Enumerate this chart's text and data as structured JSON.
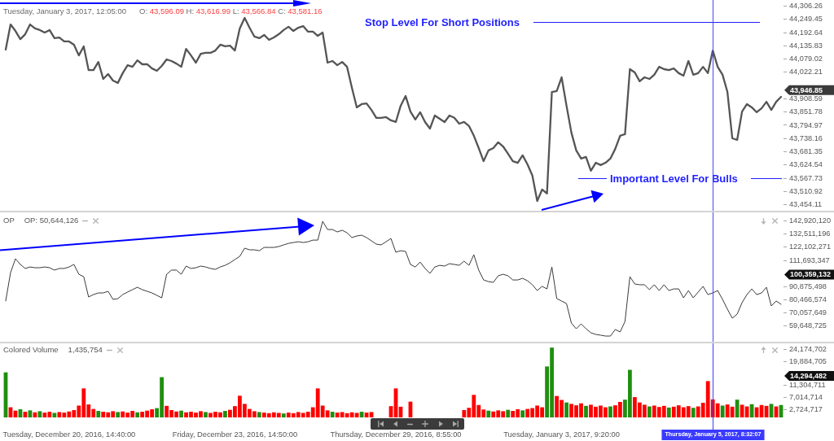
{
  "chart_data": [
    {
      "type": "line",
      "tick_labels": "y",
      "marker": "none",
      "color": "#555555",
      "categories": [
        null,
        null,
        null,
        null,
        null,
        null,
        null,
        null,
        null,
        null,
        null,
        null,
        null,
        "Tuesday, December 20, 2016, 14:40:00",
        null,
        null,
        null,
        null,
        null,
        null,
        null,
        null,
        null,
        null,
        null,
        null,
        null,
        null,
        null,
        null,
        null,
        null,
        null,
        null,
        null,
        null,
        null,
        null,
        null,
        null,
        null,
        null,
        null,
        null,
        null,
        null,
        null,
        "Friday, December 23, 2016, 14:50:00",
        null,
        null,
        null,
        null,
        null,
        null,
        null,
        null,
        null,
        null,
        null,
        null,
        null,
        null,
        null,
        null,
        null,
        null,
        null,
        null,
        null,
        null,
        null,
        null,
        null,
        null,
        null,
        null,
        null,
        null,
        null,
        null,
        "Thursday, December 29, 2016, 8:55:00",
        null,
        null,
        null,
        null,
        null,
        null,
        null,
        null,
        null,
        null,
        null,
        null,
        null,
        null,
        null,
        null,
        null,
        null,
        null,
        null,
        null,
        null,
        null,
        null,
        null,
        null,
        null,
        null,
        null,
        null,
        null,
        null,
        null,
        "Tuesday, January 3, 2017, 9:20:00",
        null,
        null,
        null,
        null,
        null,
        null,
        null,
        null,
        null,
        null,
        null,
        null,
        null,
        null,
        null,
        null,
        null,
        null,
        null,
        null,
        null,
        null,
        null,
        null,
        null,
        null,
        null,
        null,
        null,
        null,
        "Thursday, January 5, 2017, 8:32:07",
        null,
        null,
        null,
        null,
        null,
        null,
        null,
        null,
        null,
        null,
        null,
        null,
        null,
        null
      ],
      "values": [
        44120,
        44228,
        44200,
        44165,
        44186,
        44228,
        44211,
        44204,
        44193,
        44204,
        44169,
        44172,
        44155,
        44155,
        44141,
        44095,
        44134,
        44032,
        44032,
        44067,
        43994,
        44015,
        43987,
        43977,
        44019,
        44053,
        44046,
        44074,
        44057,
        44057,
        44039,
        44029,
        44050,
        44078,
        44071,
        44060,
        44046,
        44123,
        44095,
        44064,
        44102,
        44106,
        44106,
        44116,
        44141,
        44134,
        44137,
        44116,
        44211,
        44256,
        44214,
        44176,
        44169,
        44183,
        44162,
        44172,
        44186,
        44204,
        44218,
        44200,
        44214,
        44221,
        44197,
        44197,
        44179,
        44193,
        44064,
        44071,
        44053,
        44067,
        44046,
        43956,
        43872,
        43886,
        43889,
        43861,
        43827,
        43827,
        43830,
        43816,
        43809,
        43879,
        43921,
        43854,
        43820,
        43851,
        43809,
        43781,
        43837,
        43823,
        43809,
        43837,
        43827,
        43802,
        43809,
        43792,
        43750,
        43697,
        43641,
        43687,
        43697,
        43722,
        43704,
        43673,
        43641,
        43634,
        43666,
        43627,
        43579,
        43470,
        43519,
        43502,
        43938,
        43942,
        44001,
        43879,
        43764,
        43687,
        43652,
        43659,
        43600,
        43634,
        43624,
        43634,
        43652,
        43694,
        43750,
        43757,
        44036,
        44022,
        43984,
        44001,
        43994,
        44012,
        44046,
        44036,
        44032,
        44039,
        44019,
        44008,
        44071,
        44012,
        44019,
        44046,
        44019,
        44116,
        44046,
        44012,
        43938,
        43739,
        43732,
        43854,
        43886,
        43872,
        43851,
        43868,
        43896,
        43861,
        43896,
        43917
      ],
      "ylim": [
        43428,
        44333
      ],
      "yticks": [
        {
          "value": 44306.26,
          "label": "44,306.26"
        },
        {
          "value": 44249.45,
          "label": "44,249.45"
        },
        {
          "value": 44192.64,
          "label": "44,192.64"
        },
        {
          "value": 44135.83,
          "label": "44,135.83"
        },
        {
          "value": 44079.02,
          "label": "44,079.02"
        },
        {
          "value": 44022.21,
          "label": "44,022.21"
        },
        {
          "value": 43908.59,
          "label": "43,908.59"
        },
        {
          "value": 43851.78,
          "label": "43,851.78"
        },
        {
          "value": 43794.97,
          "label": "43,794.97"
        },
        {
          "value": 43738.16,
          "label": "43,738.16"
        },
        {
          "value": 43681.35,
          "label": "43,681.35"
        },
        {
          "value": 43624.54,
          "label": "43,624.54"
        },
        {
          "value": 43567.73,
          "label": "43,567.73"
        },
        {
          "value": 43510.92,
          "label": "43,510.92"
        },
        {
          "value": 43454.11,
          "label": "43,454.11"
        }
      ],
      "annotations": [
        "Tuesday, January 3, 2017, 12:05:00",
        "O: 43,596.09 H: 43,616.99 L: 43,566.84 C: 43,581.16",
        "43,946.85"
      ],
      "ref_lines": [
        {
          "axis": "y",
          "value": 44240,
          "label": "Stop Level For Short Positions",
          "color": "#1f1fff"
        },
        {
          "axis": "y",
          "value": 43568,
          "label": "Important Level For Bulls",
          "color": "#1f1fff"
        },
        {
          "axis": "x",
          "value": "Thursday, January 5, 2017, 8:32:07",
          "color": "#4646ff"
        }
      ]
    },
    {
      "type": "line",
      "title": "OP",
      "tick_labels": "y",
      "marker": "none",
      "color": "#3a3a3a",
      "categories": [
        null,
        null,
        null,
        null,
        null,
        null,
        null,
        null,
        null,
        null,
        null,
        null,
        null,
        "Tuesday, December 20, 2016, 14:40:00",
        null,
        null,
        null,
        null,
        null,
        null,
        null,
        null,
        null,
        null,
        null,
        null,
        null,
        null,
        null,
        null,
        null,
        null,
        null,
        null,
        null,
        null,
        null,
        null,
        null,
        null,
        null,
        null,
        null,
        null,
        null,
        null,
        null,
        "Friday, December 23, 2016, 14:50:00",
        null,
        null,
        null,
        null,
        null,
        null,
        null,
        null,
        null,
        null,
        null,
        null,
        null,
        null,
        null,
        null,
        null,
        null,
        null,
        null,
        null,
        null,
        null,
        null,
        null,
        null,
        null,
        null,
        null,
        null,
        null,
        null,
        "Thursday, December 29, 2016, 8:55:00",
        null,
        null,
        null,
        null,
        null,
        null,
        null,
        null,
        null,
        null,
        null,
        null,
        null,
        null,
        null,
        null,
        null,
        null,
        null,
        null,
        null,
        null,
        null,
        null,
        null,
        null,
        null,
        null,
        null,
        null,
        null,
        null,
        null,
        "Tuesday, January 3, 2017, 9:20:00",
        null,
        null,
        null,
        null,
        null,
        null,
        null,
        null,
        null,
        null,
        null,
        null,
        null,
        null,
        null,
        null,
        null,
        null,
        null,
        null,
        null,
        null,
        null,
        null,
        null,
        null,
        null,
        null,
        null,
        null,
        "Thursday, January 5, 2017, 8:32:07",
        null,
        null,
        null,
        null,
        null,
        null,
        null,
        null,
        null,
        null,
        null,
        null,
        null,
        null
      ],
      "values": [
        79500000,
        102000000,
        113000000,
        108500000,
        105300000,
        106500000,
        105900000,
        105900000,
        106500000,
        105900000,
        104000000,
        105300000,
        105300000,
        106500000,
        108500000,
        100700000,
        98800000,
        82700000,
        84600000,
        85900000,
        85900000,
        87200000,
        80800000,
        81400000,
        84600000,
        86600000,
        88500000,
        90400000,
        88500000,
        87200000,
        85900000,
        84000000,
        82000000,
        100700000,
        104000000,
        104000000,
        100700000,
        107200000,
        105300000,
        105900000,
        107200000,
        106500000,
        105300000,
        104600000,
        106500000,
        107800000,
        109800000,
        112400000,
        114900000,
        121400000,
        120100000,
        120100000,
        119400000,
        122000000,
        122000000,
        122000000,
        122700000,
        124000000,
        125200000,
        125900000,
        126500000,
        125900000,
        126500000,
        127800000,
        127800000,
        142700000,
        136200000,
        136200000,
        134300000,
        135600000,
        133600000,
        129800000,
        131100000,
        131700000,
        129800000,
        127200000,
        124600000,
        124000000,
        126500000,
        129100000,
        118200000,
        119400000,
        118800000,
        108500000,
        106500000,
        110400000,
        105300000,
        101400000,
        106500000,
        107800000,
        107200000,
        109100000,
        108500000,
        107800000,
        111100000,
        107800000,
        116200000,
        104000000,
        96200000,
        94900000,
        94300000,
        99500000,
        100700000,
        99500000,
        96200000,
        96200000,
        97500000,
        95600000,
        92400000,
        87800000,
        91100000,
        89100000,
        106500000,
        81400000,
        79500000,
        77500000,
        62000000,
        57500000,
        61400000,
        57500000,
        54300000,
        53000000,
        52400000,
        51700000,
        51700000,
        56900000,
        55000000,
        63300000,
        98800000,
        93000000,
        92400000,
        92400000,
        88500000,
        92400000,
        87800000,
        92400000,
        87800000,
        89100000,
        89100000,
        82000000,
        87800000,
        82000000,
        86600000,
        91100000,
        84600000,
        85900000,
        87800000,
        80800000,
        73000000,
        65900000,
        69100000,
        78200000,
        84600000,
        89100000,
        84600000,
        85900000,
        90400000,
        75600000,
        79500000,
        76900000
      ],
      "ylim": [
        47200000,
        149800000
      ],
      "yticks": [
        {
          "value": 142920120,
          "label": "142,920,120"
        },
        {
          "value": 132511196,
          "label": "132,511,196"
        },
        {
          "value": 122102271,
          "label": "122,102,271"
        },
        {
          "value": 111693347,
          "label": "111,693,347"
        },
        {
          "value": 90875498,
          "label": "90,875,498"
        },
        {
          "value": 80466574,
          "label": "80,466,574"
        },
        {
          "value": 70057649,
          "label": "70,057,649"
        },
        {
          "value": 59648725,
          "label": "59,648,725"
        }
      ],
      "annotations": [
        "OP: 50,644,126",
        "100,359,132"
      ],
      "ref_lines": [
        {
          "axis": "x",
          "value": "Thursday, January 5, 2017, 8:32:07",
          "color": "#4646ff"
        }
      ]
    },
    {
      "type": "bar",
      "title": "Colored Volume",
      "categories": [
        null,
        null,
        null,
        null,
        null,
        null,
        null,
        null,
        null,
        null,
        null,
        null,
        null,
        "Tuesday, December 20, 2016, 14:40:00",
        null,
        null,
        null,
        null,
        null,
        null,
        null,
        null,
        null,
        null,
        null,
        null,
        null,
        null,
        null,
        null,
        null,
        null,
        null,
        null,
        null,
        null,
        null,
        null,
        null,
        null,
        null,
        null,
        null,
        null,
        null,
        null,
        null,
        "Friday, December 23, 2016, 14:50:00",
        null,
        null,
        null,
        null,
        null,
        null,
        null,
        null,
        null,
        null,
        null,
        null,
        null,
        null,
        null,
        null,
        null,
        null,
        null,
        null,
        null,
        null,
        null,
        null,
        null,
        null,
        null,
        null,
        null,
        null,
        null,
        null,
        "Thursday, December 29, 2016, 8:55:00",
        null,
        null,
        null,
        null,
        null,
        null,
        null,
        null,
        null,
        null,
        null,
        null,
        null,
        null,
        null,
        null,
        null,
        null,
        null,
        null,
        null,
        null,
        null,
        null,
        null,
        null,
        null,
        null,
        null,
        null,
        null,
        null,
        null,
        "Tuesday, January 3, 2017, 9:20:00",
        null,
        null,
        null,
        null,
        null,
        null,
        null,
        null,
        null,
        null,
        null,
        null,
        null,
        null,
        null,
        null,
        null,
        null,
        null,
        null,
        null,
        null,
        null,
        null,
        null,
        null,
        null,
        null,
        null,
        null,
        "Thursday, January 5, 2017, 8:32:07",
        null,
        null,
        null,
        null,
        null,
        null,
        null,
        null,
        null,
        null,
        null,
        null,
        null,
        null
      ],
      "values": [
        16000000,
        3600000,
        2400000,
        2900000,
        2000000,
        2500000,
        1800000,
        2200000,
        1700000,
        2000000,
        1600000,
        1900000,
        1700000,
        2100000,
        2600000,
        4200000,
        10300000,
        4600000,
        3000000,
        2300000,
        2000000,
        1800000,
        2200000,
        1900000,
        2100000,
        1700000,
        2300000,
        1800000,
        2000000,
        2400000,
        2900000,
        3300000,
        14300000,
        4100000,
        2600000,
        2100000,
        2400000,
        1800000,
        2000000,
        1700000,
        2200000,
        1900000,
        1600000,
        2000000,
        1800000,
        2300000,
        2700000,
        4000000,
        7700000,
        4800000,
        3000000,
        2200000,
        1900000,
        1700000,
        1500000,
        1800000,
        1600000,
        1400000,
        1700000,
        1500000,
        1900000,
        1600000,
        2000000,
        3600000,
        10300000,
        4200000,
        2500000,
        2000000,
        1700000,
        1900000,
        1500000,
        1800000,
        1600000,
        2000000,
        1700000,
        1900000,
        null,
        null,
        null,
        4000000,
        10300000,
        3800000,
        null,
        5600000,
        null,
        null,
        null,
        null,
        null,
        null,
        null,
        null,
        null,
        null,
        2600000,
        3400000,
        8000000,
        4400000,
        2800000,
        2400000,
        2100000,
        2500000,
        2200000,
        2700000,
        2300000,
        2900000,
        2500000,
        3000000,
        3300000,
        4200000,
        3600000,
        18100000,
        24800000,
        7600000,
        6200000,
        5300000,
        4800000,
        4300000,
        5000000,
        4100000,
        4500000,
        3800000,
        4200000,
        3600000,
        3900000,
        4300000,
        5500000,
        6300000,
        16900000,
        7200000,
        5300000,
        4500000,
        3900000,
        4200000,
        3700000,
        4100000,
        3500000,
        3800000,
        4300000,
        3600000,
        4000000,
        3400000,
        3900000,
        5200000,
        12900000,
        6400000,
        5000000,
        4200000,
        4600000,
        3800000,
        6300000,
        4500000,
        3900000,
        4700000,
        3600000,
        4400000,
        4100000,
        4800000,
        3900000,
        4400000
      ],
      "colors": [
        "#1f8f0f",
        "#ff0000",
        "#ff0000",
        "#1f8f0f",
        "#ff0000",
        "#1f8f0f",
        "#ff0000",
        "#1f8f0f",
        "#ff0000",
        "#ff0000",
        "#1f8f0f",
        "#ff0000",
        "#ff0000",
        "#ff0000",
        "#ff0000",
        "#ff0000",
        "#ff0000",
        "#ff0000",
        "#ff0000",
        "#1f8f0f",
        "#ff0000",
        "#ff0000",
        "#ff0000",
        "#1f8f0f",
        "#ff0000",
        "#ff0000",
        "#ff0000",
        "#1f8f0f",
        "#ff0000",
        "#ff0000",
        "#ff0000",
        "#1f8f0f",
        "#1f8f0f",
        "#ff0000",
        "#ff0000",
        "#ff0000",
        "#1f8f0f",
        "#ff0000",
        "#ff0000",
        "#ff0000",
        "#ff0000",
        "#1f8f0f",
        "#ff0000",
        "#ff0000",
        "#ff0000",
        "#1f8f0f",
        "#ff0000",
        "#ff0000",
        "#ff0000",
        "#ff0000",
        "#ff0000",
        "#ff0000",
        "#1f8f0f",
        "#ff0000",
        "#ff0000",
        "#ff0000",
        "#ff0000",
        "#1f8f0f",
        "#ff0000",
        "#ff0000",
        "#ff0000",
        "#ff0000",
        "#ff0000",
        "#ff0000",
        "#ff0000",
        "#ff0000",
        "#ff0000",
        "#1f8f0f",
        "#ff0000",
        "#ff0000",
        "#ff0000",
        "#ff0000",
        "#ff0000",
        "#1f8f0f",
        "#ff0000",
        "#ff0000",
        "#ff0000",
        "#ff0000",
        "#ff0000",
        "#ff0000",
        "#ff0000",
        "#ff0000",
        "#ff0000",
        "#ff0000",
        "#ff0000",
        "#1f8f0f",
        "#ff0000",
        "#ff0000",
        "#ff0000",
        "#1f8f0f",
        "#ff0000",
        "#ff0000",
        "#ff0000",
        "#ff0000",
        "#ff0000",
        "#ff0000",
        "#ff0000",
        "#ff0000",
        "#ff0000",
        "#1f8f0f",
        "#ff0000",
        "#ff0000",
        "#ff0000",
        "#1f8f0f",
        "#ff0000",
        "#ff0000",
        "#1f8f0f",
        "#ff0000",
        "#ff0000",
        "#ff0000",
        "#ff0000",
        "#1f8f0f",
        "#1f8f0f",
        "#ff0000",
        "#ff0000",
        "#1f8f0f",
        "#ff0000",
        "#ff0000",
        "#ff0000",
        "#1f8f0f",
        "#ff0000",
        "#ff0000",
        "#ff0000",
        "#ff0000",
        "#1f8f0f",
        "#ff0000",
        "#ff0000",
        "#1f8f0f",
        "#1f8f0f",
        "#ff0000",
        "#ff0000",
        "#ff0000",
        "#1f8f0f",
        "#ff0000",
        "#ff0000",
        "#ff0000",
        "#1f8f0f",
        "#ff0000",
        "#ff0000",
        "#ff0000",
        "#ff0000",
        "#1f8f0f",
        "#ff0000",
        "#ff0000",
        "#ff0000",
        "#ff0000",
        "#ff0000",
        "#1f8f0f",
        "#ff0000",
        "#ff0000",
        "#1f8f0f",
        "#ff0000",
        "#ff0000",
        "#1f8f0f",
        "#ff0000",
        "#ff0000",
        "#ff0000",
        "#1f8f0f",
        "#ff0000",
        "#1f8f0f"
      ],
      "ylim": [
        0,
        26300000
      ],
      "yticks": [
        {
          "value": 24174702,
          "label": "24,174,702"
        },
        {
          "value": 19884705,
          "label": "19,884,705"
        },
        {
          "value": 11304711,
          "label": "11,304,711"
        },
        {
          "value": 7014714,
          "label": "7,014,714"
        },
        {
          "value": 2724717,
          "label": "2,724,717"
        }
      ],
      "annotations": [
        "1,435,754",
        "14,294,482"
      ],
      "ref_lines": [
        {
          "axis": "x",
          "value": "Thursday, January 5, 2017, 8:32:07",
          "color": "#3a3aff"
        }
      ]
    }
  ]
}
